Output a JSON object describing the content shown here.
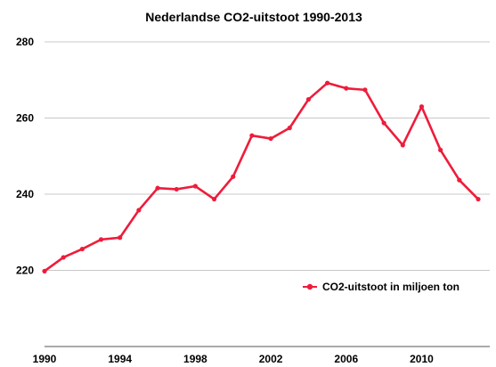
{
  "chart_data": {
    "type": "line",
    "title": "Nederlandse CO2-uitstoot 1990-2013",
    "xlabel": "",
    "ylabel": "",
    "xlim": [
      1990,
      2013
    ],
    "ylim": [
      200,
      280
    ],
    "y_ticks": [
      220,
      240,
      260,
      280
    ],
    "x_ticks": [
      1990,
      1994,
      1998,
      2002,
      2006,
      2010
    ],
    "grid": true,
    "legend_position": "right",
    "x": [
      1990,
      1991,
      1992,
      1993,
      1994,
      1995,
      1996,
      1997,
      1998,
      1999,
      2000,
      2001,
      2002,
      2003,
      2004,
      2005,
      2006,
      2007,
      2008,
      2009,
      2010,
      2011,
      2012,
      2013
    ],
    "series": [
      {
        "name": "CO2-uitstoot in miljoen ton",
        "color": "#ee1c3b",
        "values": [
          219.8,
          223.4,
          225.6,
          228.1,
          228.6,
          235.8,
          241.6,
          241.3,
          242.1,
          238.7,
          244.6,
          255.4,
          254.6,
          257.4,
          264.9,
          269.2,
          267.8,
          267.4,
          258.7,
          252.9,
          263.0,
          251.6,
          243.7,
          238.7
        ]
      }
    ]
  }
}
